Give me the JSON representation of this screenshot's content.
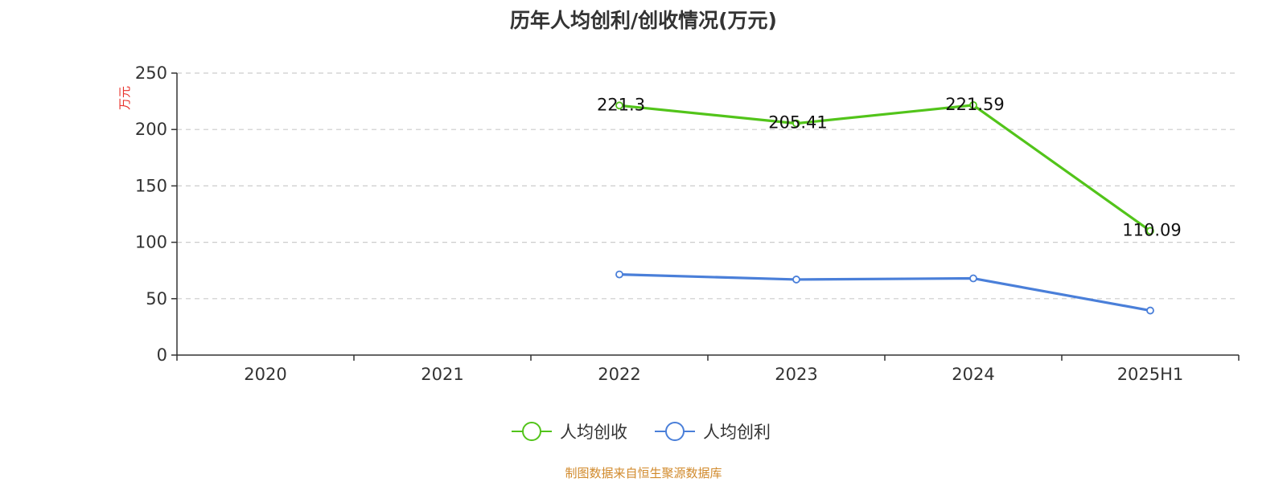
{
  "chart_data": {
    "type": "line",
    "title": "历年人均创利/创收情况(万元)",
    "ylabel": "万元",
    "categories": [
      "2020",
      "2021",
      "2022",
      "2023",
      "2024",
      "2025H1"
    ],
    "ylim": [
      0,
      250
    ],
    "yticks": [
      0,
      50,
      100,
      150,
      200,
      250
    ],
    "grid": true,
    "legend_position": "bottom",
    "series": [
      {
        "name": "人均创收",
        "color": "#52c41a",
        "values": [
          null,
          null,
          221.3,
          205.41,
          221.59,
          110.09
        ],
        "labels": [
          "",
          "",
          "221.3",
          "205.41",
          "221.59",
          "110.09"
        ]
      },
      {
        "name": "人均创利",
        "color": "#4a7fd9",
        "values": [
          null,
          null,
          71.5,
          67,
          68,
          39.5
        ],
        "labels": [
          "",
          "",
          "",
          "",
          "",
          ""
        ]
      }
    ]
  },
  "source": "制图数据来自恒生聚源数据库"
}
